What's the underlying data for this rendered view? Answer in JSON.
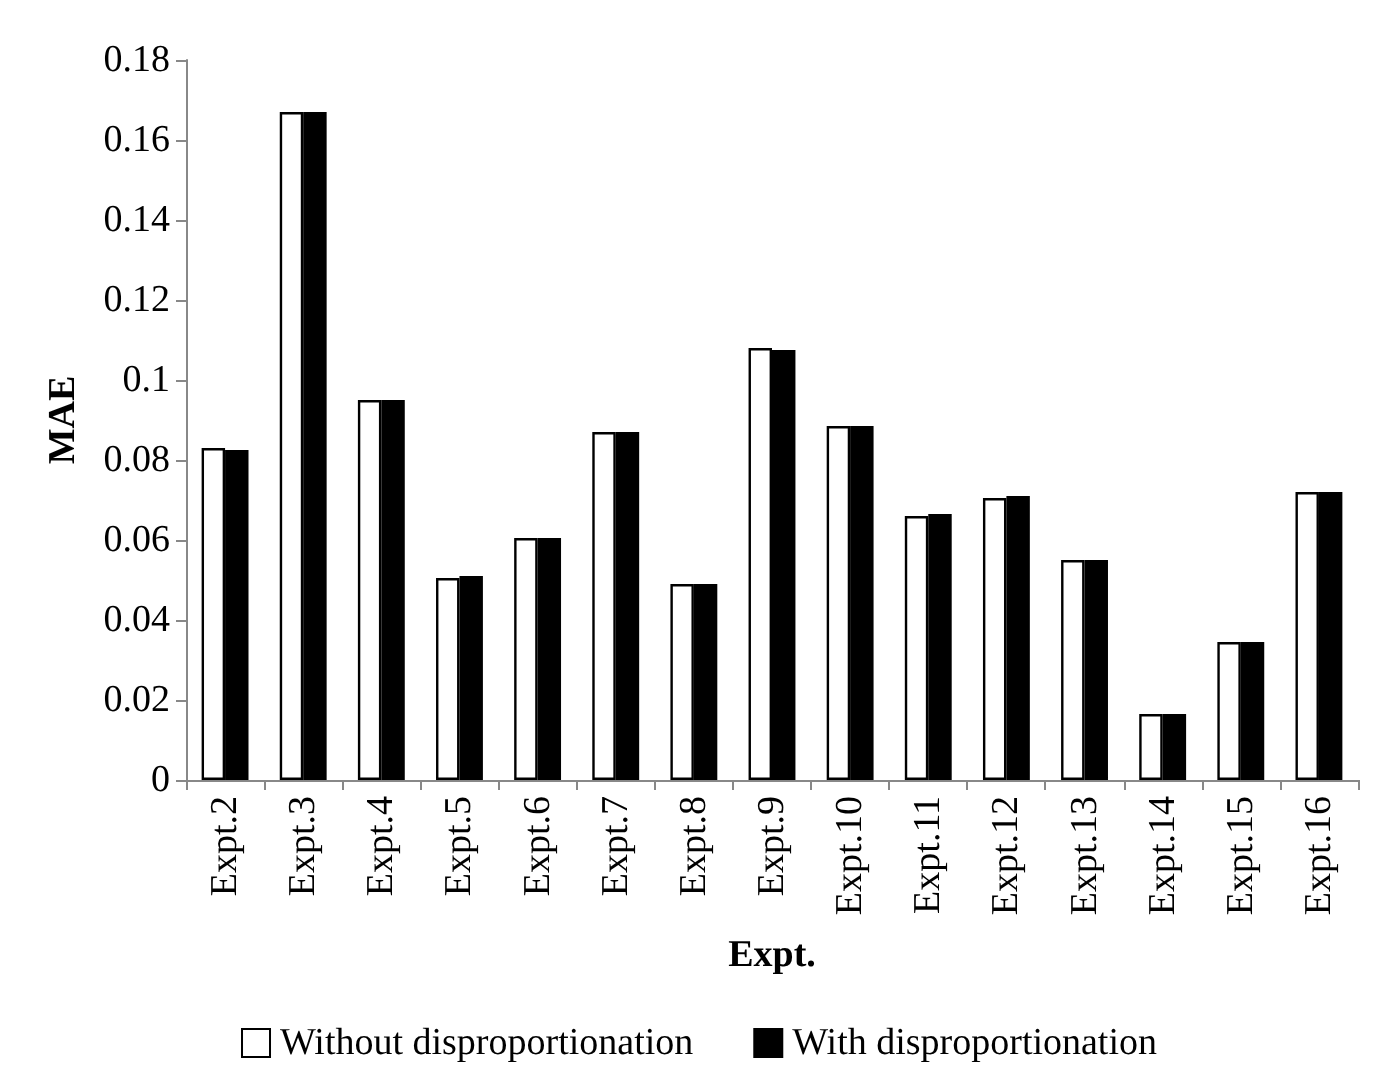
{
  "chart_data": {
    "type": "bar",
    "xlabel": "Expt.",
    "ylabel": "MAE",
    "categories": [
      "Expt.2",
      "Expt.3",
      "Expt.4",
      "Expt.5",
      "Expt.6",
      "Expt.7",
      "Expt.8",
      "Expt.9",
      "Expt.10",
      "Expt.11",
      "Expt.12",
      "Expt.13",
      "Expt.14",
      "Expt.15",
      "Expt.16"
    ],
    "series": [
      {
        "name": "Without disproportionation",
        "color": "#ffffff",
        "values": [
          0.083,
          0.167,
          0.095,
          0.0505,
          0.0605,
          0.087,
          0.049,
          0.108,
          0.0885,
          0.066,
          0.0705,
          0.055,
          0.0165,
          0.0345,
          0.072
        ]
      },
      {
        "name": "With disproportionation",
        "color": "#000000",
        "values": [
          0.0825,
          0.167,
          0.095,
          0.051,
          0.0605,
          0.087,
          0.049,
          0.1075,
          0.0885,
          0.0665,
          0.071,
          0.055,
          0.0165,
          0.0345,
          0.072
        ]
      }
    ],
    "ylim": [
      0,
      0.18
    ],
    "yticks": [
      0,
      0.02,
      0.04,
      0.06,
      0.08,
      0.1,
      0.12,
      0.14,
      0.16,
      0.18
    ],
    "grid": false,
    "legend": "bottom"
  }
}
